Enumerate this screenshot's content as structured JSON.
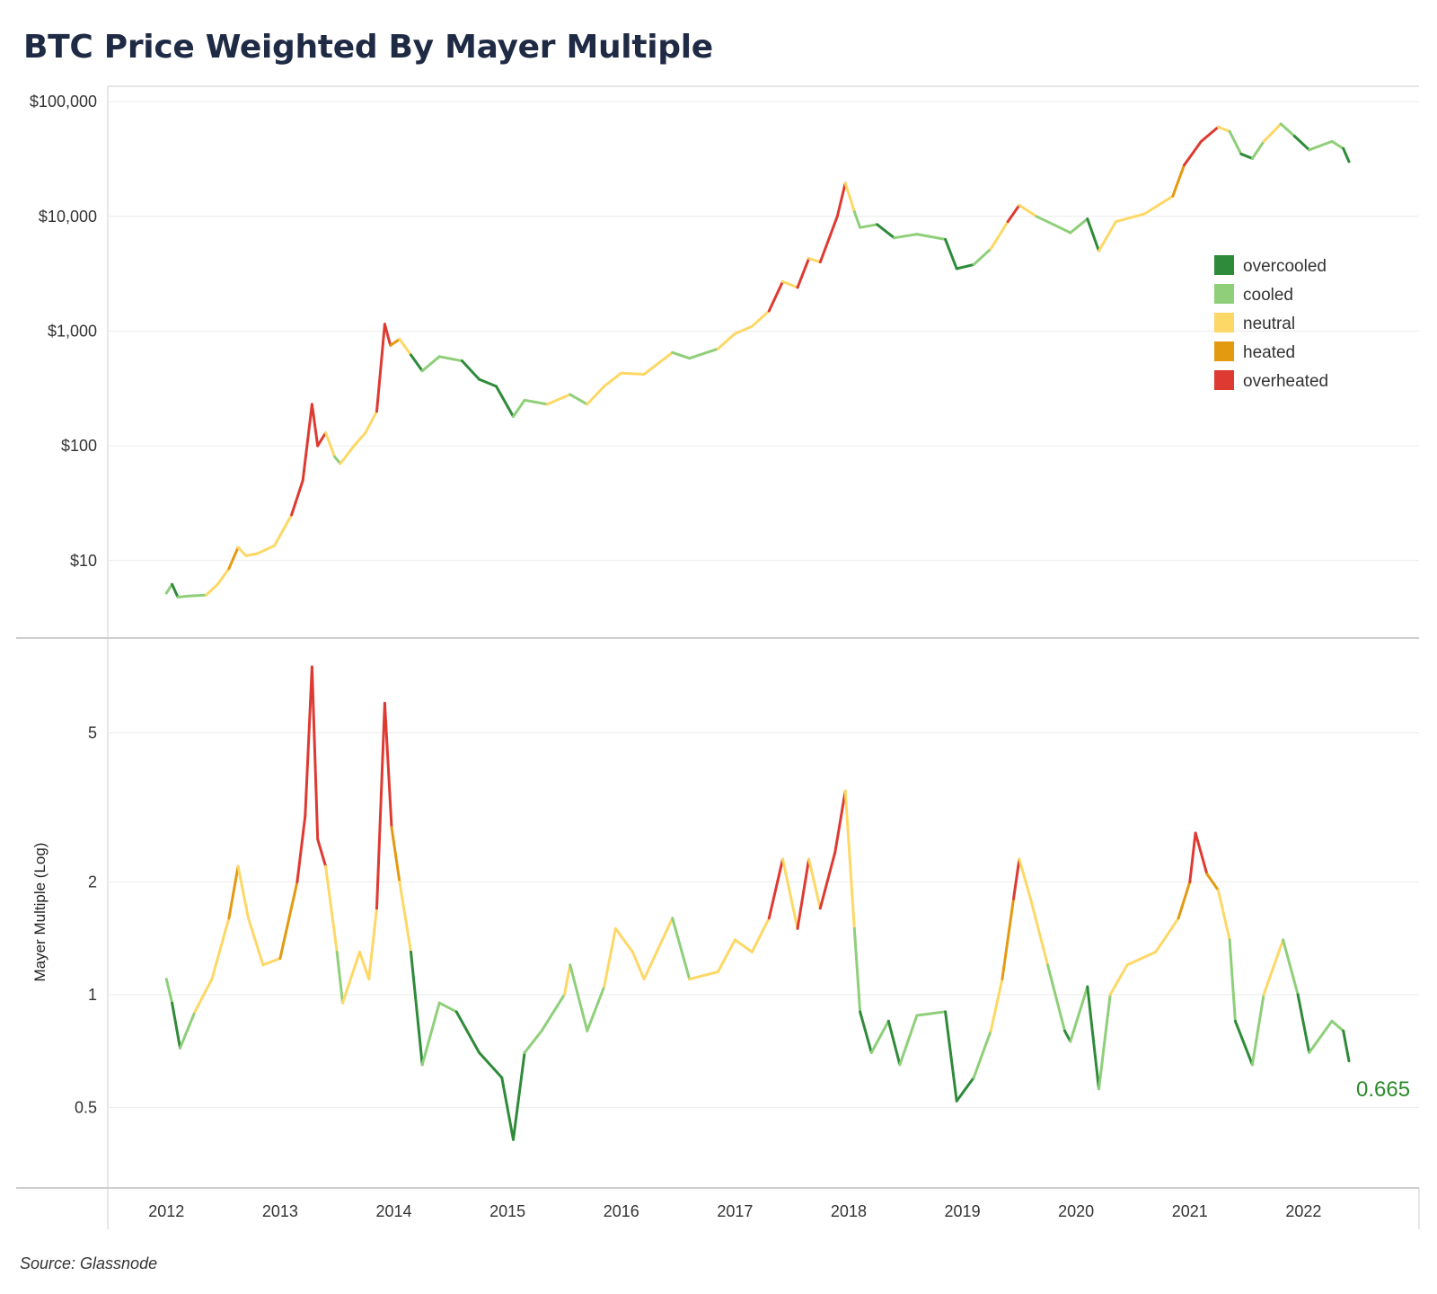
{
  "title": "BTC Price Weighted By Mayer Multiple",
  "source": "Source: Glassnode",
  "colors": {
    "overcooled": "#2e8b3a",
    "cooled": "#8fcf7a",
    "neutral": "#fdd866",
    "heated": "#e49a10",
    "overheated": "#de3a32"
  },
  "chart_data": [
    {
      "type": "line",
      "title": "",
      "y_scale": "log",
      "ylabel": "",
      "ylim": [
        3.5,
        120000
      ],
      "xlim": [
        2011.5,
        2023.0
      ],
      "x_ticks": [
        2012,
        2013,
        2014,
        2015,
        2016,
        2017,
        2018,
        2019,
        2020,
        2021,
        2022
      ],
      "x_tick_labels": [
        "2012",
        "2013",
        "2014",
        "2015",
        "2016",
        "2017",
        "2018",
        "2019",
        "2020",
        "2021",
        "2022"
      ],
      "y_ticks": [
        10,
        100,
        1000,
        10000,
        100000
      ],
      "y_tick_labels": [
        "$10",
        "$100",
        "$1,000",
        "$10,000",
        "$100,000"
      ],
      "grid": true,
      "legend": {
        "position": "right",
        "entries": [
          "overcooled",
          "cooled",
          "neutral",
          "heated",
          "overheated"
        ]
      },
      "series": [
        {
          "values_note": "BTC price (USD), colored by Mayer Multiple zone",
          "points": [
            [
              2012.0,
              5.2,
              "cooled"
            ],
            [
              2012.05,
              6.2,
              "cooled"
            ],
            [
              2012.1,
              4.8,
              "overcooled"
            ],
            [
              2012.2,
              4.9,
              "cooled"
            ],
            [
              2012.35,
              5.0,
              "cooled"
            ],
            [
              2012.45,
              6.2,
              "neutral"
            ],
            [
              2012.55,
              8.5,
              "neutral"
            ],
            [
              2012.63,
              13.0,
              "heated"
            ],
            [
              2012.7,
              11.0,
              "neutral"
            ],
            [
              2012.8,
              11.5,
              "neutral"
            ],
            [
              2012.95,
              13.5,
              "neutral"
            ],
            [
              2013.1,
              25.0,
              "neutral"
            ],
            [
              2013.2,
              50.0,
              "overheated"
            ],
            [
              2013.28,
              230.0,
              "overheated"
            ],
            [
              2013.33,
              100.0,
              "overheated"
            ],
            [
              2013.4,
              130.0,
              "overheated"
            ],
            [
              2013.48,
              80.0,
              "neutral"
            ],
            [
              2013.53,
              70.0,
              "cooled"
            ],
            [
              2013.65,
              100.0,
              "neutral"
            ],
            [
              2013.75,
              130.0,
              "neutral"
            ],
            [
              2013.85,
              200.0,
              "neutral"
            ],
            [
              2013.92,
              1150.0,
              "overheated"
            ],
            [
              2013.97,
              750.0,
              "overheated"
            ],
            [
              2014.05,
              850.0,
              "heated"
            ],
            [
              2014.15,
              620.0,
              "neutral"
            ],
            [
              2014.25,
              450.0,
              "overcooled"
            ],
            [
              2014.4,
              600.0,
              "cooled"
            ],
            [
              2014.6,
              550.0,
              "cooled"
            ],
            [
              2014.75,
              380.0,
              "overcooled"
            ],
            [
              2014.9,
              330.0,
              "overcooled"
            ],
            [
              2015.05,
              180.0,
              "overcooled"
            ],
            [
              2015.15,
              250.0,
              "cooled"
            ],
            [
              2015.35,
              230.0,
              "cooled"
            ],
            [
              2015.55,
              280.0,
              "neutral"
            ],
            [
              2015.7,
              230.0,
              "cooled"
            ],
            [
              2015.85,
              330.0,
              "neutral"
            ],
            [
              2016.0,
              430.0,
              "neutral"
            ],
            [
              2016.2,
              420.0,
              "neutral"
            ],
            [
              2016.45,
              650.0,
              "neutral"
            ],
            [
              2016.6,
              580.0,
              "cooled"
            ],
            [
              2016.85,
              700.0,
              "cooled"
            ],
            [
              2017.0,
              950.0,
              "neutral"
            ],
            [
              2017.15,
              1100.0,
              "neutral"
            ],
            [
              2017.3,
              1500.0,
              "neutral"
            ],
            [
              2017.42,
              2700.0,
              "overheated"
            ],
            [
              2017.55,
              2400.0,
              "neutral"
            ],
            [
              2017.65,
              4300.0,
              "overheated"
            ],
            [
              2017.75,
              4000.0,
              "neutral"
            ],
            [
              2017.9,
              10000.0,
              "overheated"
            ],
            [
              2017.97,
              19500.0,
              "overheated"
            ],
            [
              2018.05,
              11000.0,
              "neutral"
            ],
            [
              2018.1,
              8000.0,
              "cooled"
            ],
            [
              2018.25,
              8500.0,
              "cooled"
            ],
            [
              2018.4,
              6500.0,
              "overcooled"
            ],
            [
              2018.6,
              7000.0,
              "cooled"
            ],
            [
              2018.85,
              6300.0,
              "cooled"
            ],
            [
              2018.95,
              3500.0,
              "overcooled"
            ],
            [
              2019.1,
              3800.0,
              "overcooled"
            ],
            [
              2019.25,
              5200.0,
              "cooled"
            ],
            [
              2019.4,
              9000.0,
              "neutral"
            ],
            [
              2019.5,
              12500.0,
              "overheated"
            ],
            [
              2019.65,
              10000.0,
              "neutral"
            ],
            [
              2019.8,
              8500.0,
              "cooled"
            ],
            [
              2019.95,
              7200.0,
              "cooled"
            ],
            [
              2020.1,
              9500.0,
              "cooled"
            ],
            [
              2020.2,
              5000.0,
              "overcooled"
            ],
            [
              2020.35,
              9000.0,
              "neutral"
            ],
            [
              2020.6,
              10500.0,
              "neutral"
            ],
            [
              2020.85,
              15000.0,
              "neutral"
            ],
            [
              2020.95,
              28000.0,
              "heated"
            ],
            [
              2021.1,
              45000.0,
              "overheated"
            ],
            [
              2021.25,
              60000.0,
              "overheated"
            ],
            [
              2021.35,
              55000.0,
              "neutral"
            ],
            [
              2021.45,
              35000.0,
              "cooled"
            ],
            [
              2021.55,
              32000.0,
              "overcooled"
            ],
            [
              2021.65,
              45000.0,
              "cooled"
            ],
            [
              2021.8,
              64000.0,
              "neutral"
            ],
            [
              2021.92,
              50000.0,
              "cooled"
            ],
            [
              2022.05,
              38000.0,
              "overcooled"
            ],
            [
              2022.25,
              45000.0,
              "cooled"
            ],
            [
              2022.35,
              39000.0,
              "cooled"
            ],
            [
              2022.4,
              30000.0,
              "overcooled"
            ]
          ]
        }
      ]
    },
    {
      "type": "line",
      "title": "",
      "y_scale": "log",
      "ylabel": "Mayer Multiple (Log)",
      "ylim": [
        0.38,
        7.8
      ],
      "xlim": [
        2011.5,
        2023.0
      ],
      "x_ticks": [
        2012,
        2013,
        2014,
        2015,
        2016,
        2017,
        2018,
        2019,
        2020,
        2021,
        2022
      ],
      "x_tick_labels": [
        "2012",
        "2013",
        "2014",
        "2015",
        "2016",
        "2017",
        "2018",
        "2019",
        "2020",
        "2021",
        "2022"
      ],
      "y_ticks": [
        0.5,
        1,
        2,
        5
      ],
      "y_tick_labels": [
        "0.5",
        "1",
        "2",
        "5"
      ],
      "grid": true,
      "end_label": "0.665",
      "series": [
        {
          "values_note": "Mayer Multiple, colored by zone",
          "points": [
            [
              2012.0,
              1.1,
              "cooled"
            ],
            [
              2012.05,
              0.95,
              "cooled"
            ],
            [
              2012.12,
              0.72,
              "overcooled"
            ],
            [
              2012.25,
              0.9,
              "cooled"
            ],
            [
              2012.4,
              1.1,
              "neutral"
            ],
            [
              2012.55,
              1.6,
              "neutral"
            ],
            [
              2012.63,
              2.2,
              "heated"
            ],
            [
              2012.72,
              1.6,
              "neutral"
            ],
            [
              2012.85,
              1.2,
              "neutral"
            ],
            [
              2013.0,
              1.25,
              "neutral"
            ],
            [
              2013.15,
              2.0,
              "heated"
            ],
            [
              2013.22,
              3.0,
              "overheated"
            ],
            [
              2013.28,
              7.5,
              "overheated"
            ],
            [
              2013.33,
              2.6,
              "overheated"
            ],
            [
              2013.4,
              2.2,
              "overheated"
            ],
            [
              2013.5,
              1.3,
              "neutral"
            ],
            [
              2013.55,
              0.95,
              "cooled"
            ],
            [
              2013.7,
              1.3,
              "neutral"
            ],
            [
              2013.78,
              1.1,
              "neutral"
            ],
            [
              2013.85,
              1.7,
              "neutral"
            ],
            [
              2013.92,
              6.0,
              "overheated"
            ],
            [
              2013.98,
              2.8,
              "overheated"
            ],
            [
              2014.05,
              2.0,
              "heated"
            ],
            [
              2014.15,
              1.3,
              "neutral"
            ],
            [
              2014.25,
              0.65,
              "overcooled"
            ],
            [
              2014.4,
              0.95,
              "cooled"
            ],
            [
              2014.55,
              0.9,
              "cooled"
            ],
            [
              2014.75,
              0.7,
              "overcooled"
            ],
            [
              2014.95,
              0.6,
              "overcooled"
            ],
            [
              2015.05,
              0.41,
              "overcooled"
            ],
            [
              2015.15,
              0.7,
              "overcooled"
            ],
            [
              2015.3,
              0.8,
              "cooled"
            ],
            [
              2015.5,
              1.0,
              "cooled"
            ],
            [
              2015.55,
              1.2,
              "neutral"
            ],
            [
              2015.7,
              0.8,
              "cooled"
            ],
            [
              2015.85,
              1.05,
              "cooled"
            ],
            [
              2015.95,
              1.5,
              "neutral"
            ],
            [
              2016.1,
              1.3,
              "neutral"
            ],
            [
              2016.2,
              1.1,
              "neutral"
            ],
            [
              2016.45,
              1.6,
              "neutral"
            ],
            [
              2016.6,
              1.1,
              "cooled"
            ],
            [
              2016.85,
              1.15,
              "neutral"
            ],
            [
              2017.0,
              1.4,
              "neutral"
            ],
            [
              2017.15,
              1.3,
              "neutral"
            ],
            [
              2017.3,
              1.6,
              "neutral"
            ],
            [
              2017.42,
              2.3,
              "overheated"
            ],
            [
              2017.55,
              1.5,
              "neutral"
            ],
            [
              2017.65,
              2.3,
              "overheated"
            ],
            [
              2017.75,
              1.7,
              "neutral"
            ],
            [
              2017.88,
              2.4,
              "overheated"
            ],
            [
              2017.97,
              3.5,
              "overheated"
            ],
            [
              2018.05,
              1.5,
              "neutral"
            ],
            [
              2018.1,
              0.9,
              "cooled"
            ],
            [
              2018.2,
              0.7,
              "overcooled"
            ],
            [
              2018.35,
              0.85,
              "cooled"
            ],
            [
              2018.45,
              0.65,
              "overcooled"
            ],
            [
              2018.6,
              0.88,
              "cooled"
            ],
            [
              2018.85,
              0.9,
              "cooled"
            ],
            [
              2018.95,
              0.52,
              "overcooled"
            ],
            [
              2019.1,
              0.6,
              "overcooled"
            ],
            [
              2019.25,
              0.8,
              "cooled"
            ],
            [
              2019.35,
              1.1,
              "neutral"
            ],
            [
              2019.45,
              1.8,
              "heated"
            ],
            [
              2019.5,
              2.3,
              "overheated"
            ],
            [
              2019.6,
              1.8,
              "neutral"
            ],
            [
              2019.75,
              1.2,
              "neutral"
            ],
            [
              2019.9,
              0.8,
              "cooled"
            ],
            [
              2019.95,
              0.75,
              "overcooled"
            ],
            [
              2020.1,
              1.05,
              "cooled"
            ],
            [
              2020.2,
              0.56,
              "overcooled"
            ],
            [
              2020.3,
              1.0,
              "cooled"
            ],
            [
              2020.45,
              1.2,
              "neutral"
            ],
            [
              2020.7,
              1.3,
              "neutral"
            ],
            [
              2020.9,
              1.6,
              "neutral"
            ],
            [
              2021.0,
              2.0,
              "heated"
            ],
            [
              2021.05,
              2.7,
              "overheated"
            ],
            [
              2021.15,
              2.1,
              "overheated"
            ],
            [
              2021.25,
              1.9,
              "heated"
            ],
            [
              2021.35,
              1.4,
              "neutral"
            ],
            [
              2021.4,
              0.85,
              "cooled"
            ],
            [
              2021.55,
              0.65,
              "overcooled"
            ],
            [
              2021.65,
              1.0,
              "cooled"
            ],
            [
              2021.82,
              1.4,
              "neutral"
            ],
            [
              2021.95,
              1.0,
              "cooled"
            ],
            [
              2022.05,
              0.7,
              "overcooled"
            ],
            [
              2022.25,
              0.85,
              "cooled"
            ],
            [
              2022.35,
              0.8,
              "cooled"
            ],
            [
              2022.4,
              0.665,
              "overcooled"
            ]
          ]
        }
      ]
    }
  ]
}
